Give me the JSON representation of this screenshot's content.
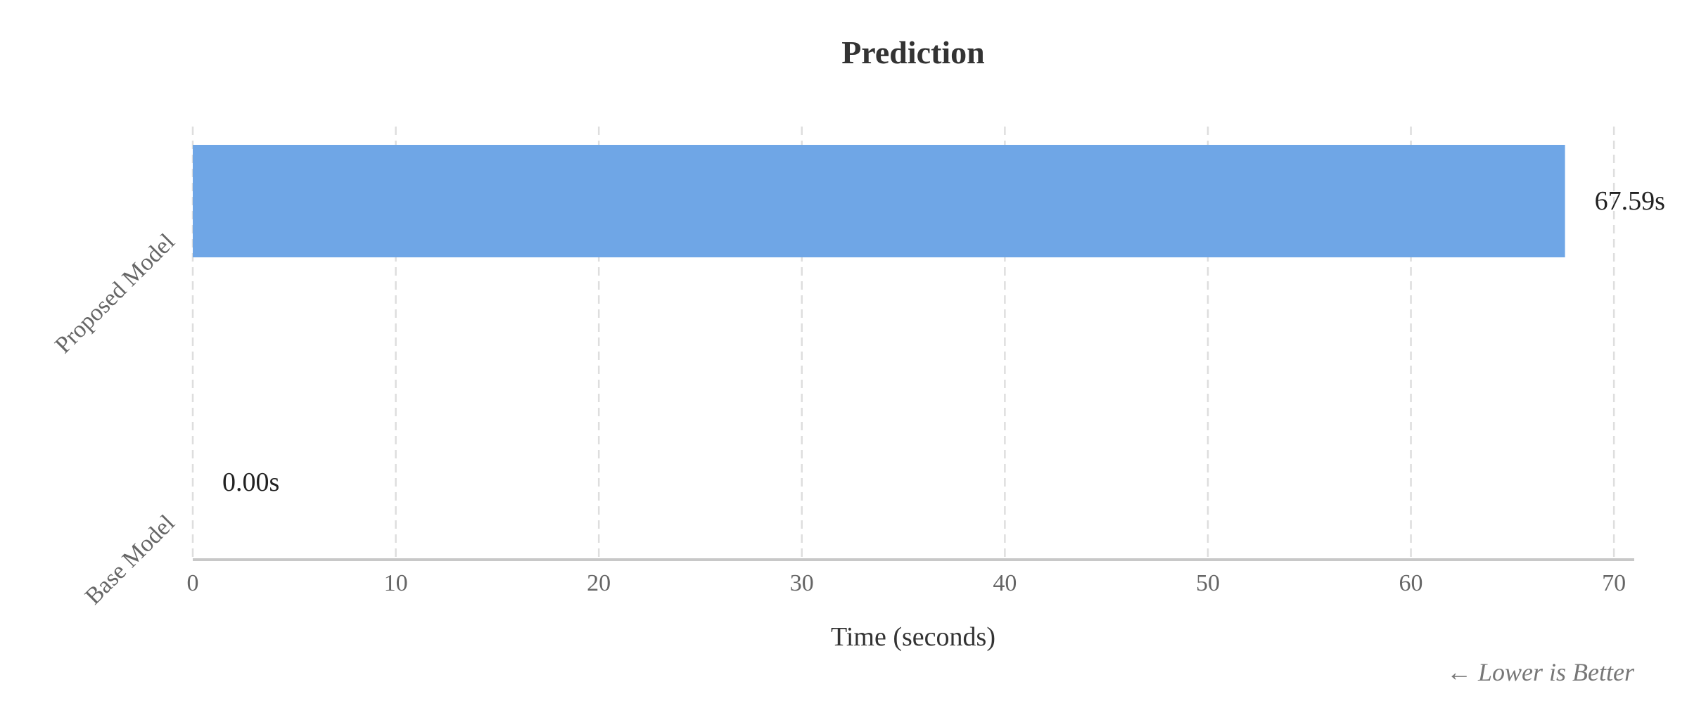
{
  "chart_data": {
    "type": "bar",
    "orientation": "horizontal",
    "title": "Prediction",
    "xlabel": "Time (seconds)",
    "ylabel": "",
    "categories": [
      "Proposed Model",
      "Base Model"
    ],
    "values": [
      67.59,
      0.0
    ],
    "value_labels": [
      "67.59s",
      "0.00s"
    ],
    "xlim": [
      0,
      71
    ],
    "xticks": [
      0,
      10,
      20,
      30,
      40,
      50,
      60,
      70
    ],
    "grid": true,
    "grid_axis": "x",
    "legend": "none",
    "annotation": "← Lower is Better",
    "colors": {
      "bar": "#6fa6e6",
      "grid": "#dedede",
      "axis": "#c8c8c8",
      "title": "#333333",
      "tick_label": "#666666",
      "value_label": "#222222",
      "annotation": "#777777"
    }
  }
}
